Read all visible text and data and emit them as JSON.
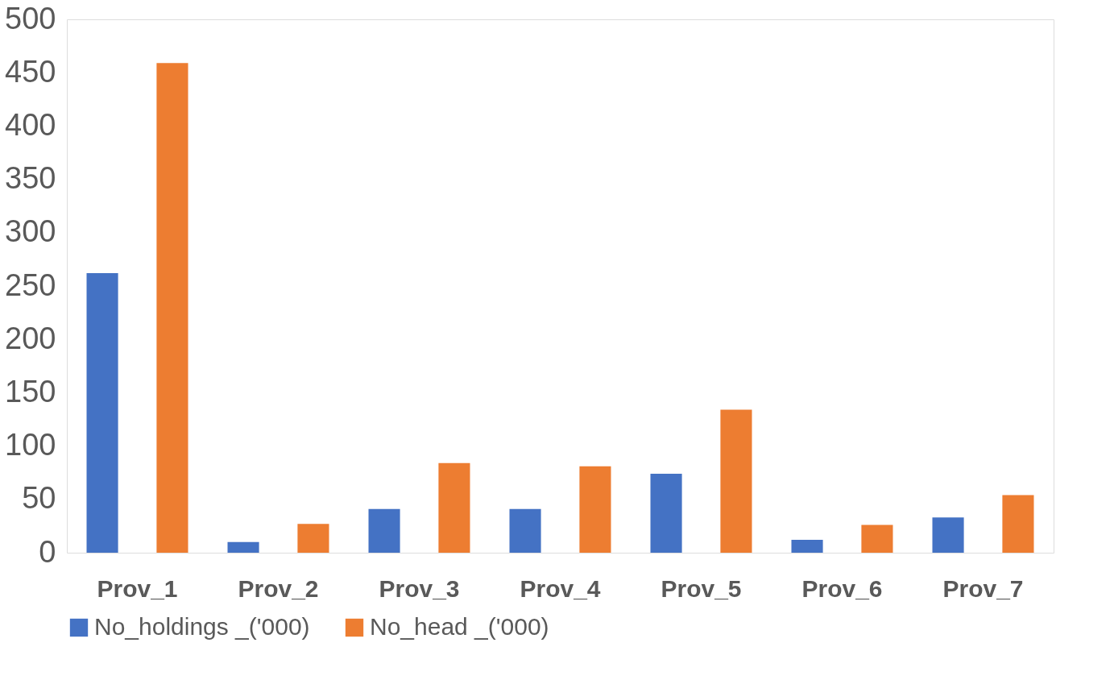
{
  "chart_data": {
    "type": "bar",
    "categories": [
      "Prov_1",
      "Prov_2",
      "Prov_3",
      "Prov_4",
      "Prov_5",
      "Prov_6",
      "Prov_7"
    ],
    "series": [
      {
        "name": "No_holdings _('000)",
        "color": "#4472c4",
        "values": [
          262,
          10,
          41,
          41,
          74,
          12,
          33
        ]
      },
      {
        "name": "No_head _('000)",
        "color": "#ed7d31",
        "values": [
          459,
          27,
          84,
          81,
          134,
          26,
          54
        ]
      }
    ],
    "ylim": [
      0,
      500
    ],
    "yticks": [
      0,
      50,
      100,
      150,
      200,
      250,
      300,
      350,
      400,
      450,
      500
    ],
    "grid": false,
    "legend": "bottom"
  }
}
